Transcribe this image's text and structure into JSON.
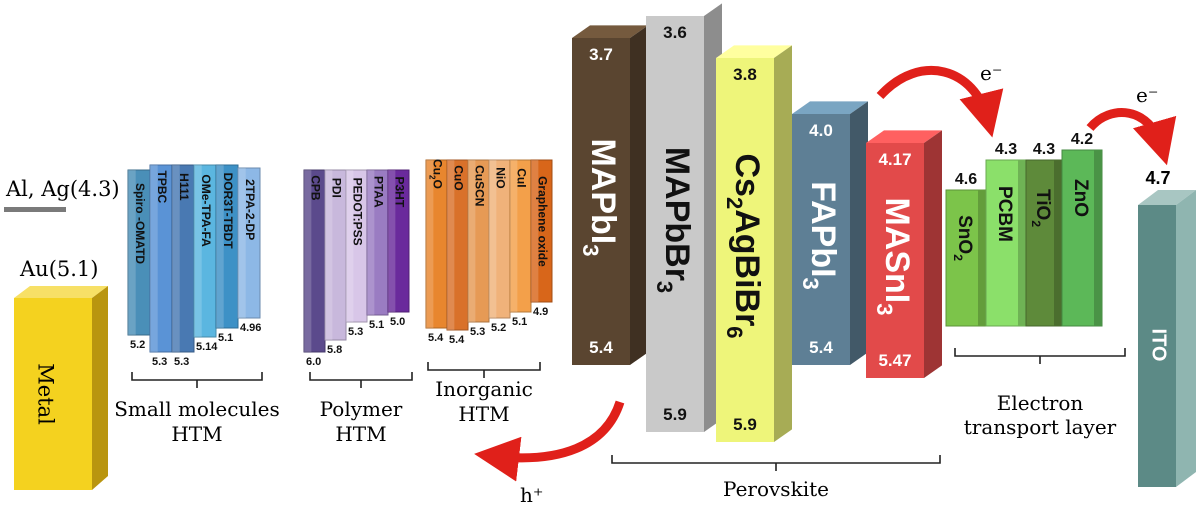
{
  "metal": {
    "al_ag": "Al, Ag(4.3)",
    "au": "Au(5.1)",
    "label": "Metal"
  },
  "groups": {
    "small_molecules": [
      "Small molecules",
      "HTM"
    ],
    "polymer": [
      "Polymer",
      "HTM"
    ],
    "inorganic": [
      "Inorganic",
      "HTM"
    ],
    "perovskite": "Perovskite",
    "etl": [
      "Electron",
      "transport layer"
    ]
  },
  "small_htm": [
    {
      "name": "Spiro -OMATD",
      "bottom": "5.2"
    },
    {
      "name": "TPBC",
      "bottom": "5.3"
    },
    {
      "name": "H111",
      "bottom": "5.3"
    },
    {
      "name": "OMe-TPA-FA",
      "bottom": "5.14"
    },
    {
      "name": "DOR3T-TBDT",
      "bottom": "5.1"
    },
    {
      "name": "2TPA-2-DP",
      "bottom": "4.96"
    }
  ],
  "polymer_htm": [
    {
      "name": "CPB",
      "bottom": "6.0"
    },
    {
      "name": "PDI",
      "bottom": "5.8"
    },
    {
      "name": "PEDOT:PSS",
      "bottom": "5.3"
    },
    {
      "name": "PTAA",
      "bottom": "5.1"
    },
    {
      "name": "P3HT",
      "bottom": "5.0"
    }
  ],
  "inorganic_htm": [
    {
      "name": "Cu",
      "sub": "2",
      "tail": "O",
      "bottom": "5.4"
    },
    {
      "name": "CuO",
      "bottom": "5.4"
    },
    {
      "name": "CuSCN",
      "bottom": "5.3"
    },
    {
      "name": "NiO",
      "bottom": "5.2"
    },
    {
      "name": "CuI",
      "bottom": "5.1"
    },
    {
      "name": "Graphene oxide",
      "bottom": "4.9"
    }
  ],
  "perovskites": [
    {
      "pre": "MAPbI",
      "sub": "3",
      "top": "3.7",
      "bottom": "5.4"
    },
    {
      "pre": "MAPbBr",
      "sub": "3",
      "top": "3.6",
      "bottom": "5.9"
    },
    {
      "pre": "Cs",
      "sub": "2",
      "mid": "AgBiBr",
      "sub2": "6",
      "top": "3.8",
      "bottom": "5.9"
    },
    {
      "pre": "FAPbI",
      "sub": "3",
      "top": "4.0",
      "bottom": "5.4"
    },
    {
      "pre": "MASnI",
      "sub": "3",
      "top": "4.17",
      "bottom": "5.47"
    }
  ],
  "etl": [
    {
      "pre": "SnO",
      "sub": "2",
      "top": "4.6"
    },
    {
      "pre": "PCBM",
      "top": "4.3"
    },
    {
      "pre": "TiO",
      "sub": "2",
      "top": "4.3"
    },
    {
      "pre": "ZnO",
      "top": "4.2"
    }
  ],
  "ito": {
    "label": "ITO",
    "top": "4.7"
  },
  "carriers": {
    "electron": "e⁻",
    "hole": "h⁺"
  },
  "colors": {
    "metal": "#f4d21f",
    "ito": "#5c8a86",
    "arrow": "#e0201a",
    "small_htm": [
      "#4a8fb8",
      "#5a93d6",
      "#4979b2",
      "#5bb6e0",
      "#3d91c6",
      "#8db8e6"
    ],
    "polymer_htm": [
      "#5b4a8c",
      "#c8b8dc",
      "#d8c6e8",
      "#9a7cc2",
      "#6a2a9c"
    ],
    "inorganic_htm": [
      "#e8862e",
      "#d9712a",
      "#e69a55",
      "#f0b27a",
      "#f3a04a",
      "#d8661a"
    ],
    "perovskites": [
      "#5a4530",
      "#c9c9c9",
      "#eef57a",
      "#5e7f95",
      "#e24a4a"
    ],
    "etl": [
      "#7cc44a",
      "#8be06a",
      "#5e8a3a",
      "#5cb858"
    ]
  }
}
